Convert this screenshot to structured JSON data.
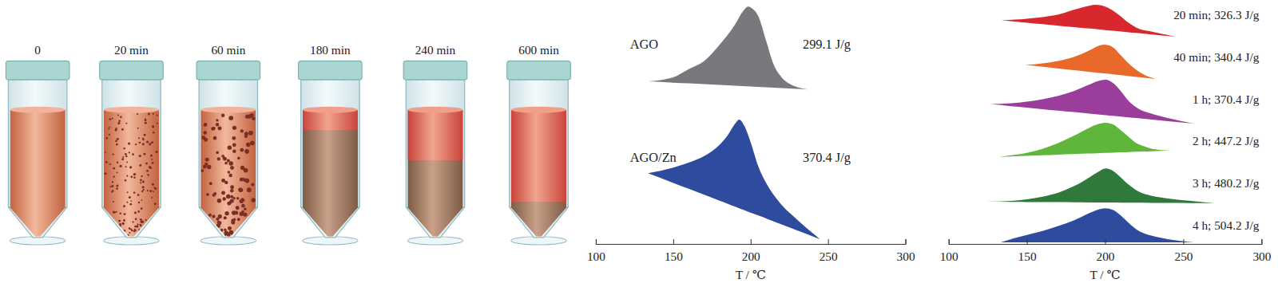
{
  "tubes": {
    "labels": [
      "0",
      "20 min",
      "60 min",
      "180 min",
      "240 min",
      "600 min"
    ]
  },
  "chart_data": [
    {
      "type": "area",
      "x_label": "T / ℃",
      "xlim": [
        100,
        300
      ],
      "xticks": [
        100,
        150,
        200,
        250,
        300
      ],
      "ylim": [
        0,
        300
      ],
      "tick_labels": "x",
      "series": [
        {
          "name": "AGO",
          "annotation": "299.1 J/g",
          "color": "#77797d",
          "x": [
            133.7,
            150,
            160,
            170,
            180,
            190,
            195,
            198.4,
            202,
            205,
            210,
            215,
            220,
            225,
            230,
            237.4
          ],
          "values": [
            200,
            205,
            215,
            225,
            245,
            270,
            286,
            292,
            288,
            280,
            250,
            220,
            205,
            197,
            193,
            190
          ],
          "baseline": [
            200,
            198.4,
            197.5,
            196.5,
            195.5,
            194.6,
            194.1,
            193.8,
            193.4,
            193.1,
            192.6,
            192.2,
            191.7,
            191.2,
            190.7,
            190
          ]
        },
        {
          "name": "AGO/Zn",
          "annotation": "370.4 J/g",
          "color": "#2f4b9d",
          "x": [
            133.7,
            150,
            160,
            170,
            180,
            185,
            190,
            192.6,
            196,
            200,
            205,
            210,
            215,
            220,
            230,
            244.7
          ],
          "values": [
            87,
            94,
            100,
            108,
            122,
            133,
            148,
            153,
            145,
            125,
            95,
            75,
            60,
            48,
            30,
            6
          ],
          "baseline": [
            87,
            75.1,
            67.8,
            60.5,
            53.2,
            49.6,
            45.9,
            44.0,
            41.5,
            38.6,
            35.0,
            31.4,
            27.7,
            24.0,
            16.7,
            6
          ]
        }
      ]
    },
    {
      "type": "area",
      "x_label": "T / ℃",
      "xlim": [
        100,
        300
      ],
      "xticks": [
        100,
        150,
        200,
        250,
        300
      ],
      "ylim": [
        0,
        300
      ],
      "tick_labels": "x",
      "series": [
        {
          "name": "20 min; 326.3 J/g",
          "color": "#d9272e",
          "x": [
            133.9,
            150,
            160,
            170,
            180,
            190,
            194,
            200,
            205,
            210,
            215,
            220,
            230,
            245.3
          ],
          "values": [
            275,
            277,
            279,
            282,
            288,
            293,
            294,
            292,
            287,
            280,
            272,
            266,
            261,
            255
          ],
          "baseline": [
            275,
            272.1,
            270.3,
            268.5,
            266.7,
            264.9,
            264.2,
            263.1,
            262.2,
            261.3,
            260.4,
            259.5,
            257.7,
            255
          ]
        },
        {
          "name": "40 min; 340.4 J/g",
          "color": "#e8692a",
          "x": [
            149,
            160,
            170,
            180,
            190,
            195,
            199.5,
            205,
            210,
            215,
            220,
            225,
            232.3
          ],
          "values": [
            220,
            222,
            225,
            230,
            238,
            243,
            245,
            242,
            232,
            222,
            214,
            208,
            203
          ],
          "baseline": [
            220,
            217.8,
            215.7,
            213.7,
            211.6,
            210.6,
            209.7,
            208.6,
            207.6,
            206.5,
            205.5,
            204.5,
            203
          ]
        },
        {
          "name": "1 h; 370.4 J/g",
          "color": "#9b3e9b",
          "x": [
            126.6,
            140,
            150,
            160,
            170,
            180,
            190,
            195,
            200.5,
            205,
            210,
            215,
            220,
            230,
            240,
            256.8
          ],
          "values": [
            172,
            173,
            175,
            178,
            182,
            188,
            196,
            200,
            202,
            198,
            188,
            176,
            168,
            160,
            155,
            148
          ],
          "baseline": [
            172,
            169.5,
            167.7,
            165.8,
            164.0,
            162.2,
            160.3,
            159.4,
            158.4,
            157.5,
            156.6,
            155.7,
            154.8,
            152.9,
            151.1,
            148
          ]
        },
        {
          "name": "2 h; 447.2 J/g",
          "color": "#5fb63b",
          "x": [
            132.3,
            140,
            150,
            160,
            170,
            180,
            190,
            195,
            200,
            205,
            210,
            215,
            220,
            225,
            230,
            241.7
          ],
          "values": [
            107,
            109,
            112,
            117,
            124,
            133,
            143,
            147,
            149,
            147,
            140,
            132,
            124,
            120,
            117,
            115
          ],
          "baseline": [
            107,
            107.6,
            108.3,
            109.0,
            109.8,
            110.5,
            111.2,
            111.6,
            112.0,
            112.3,
            112.7,
            113.0,
            113.4,
            113.8,
            114.1,
            115
          ]
        },
        {
          "name": "3 h; 480.2 J/g",
          "color": "#2f7a3b",
          "x": [
            122.9,
            140,
            150,
            160,
            170,
            180,
            190,
            195,
            200.5,
            205,
            210,
            215,
            220,
            230,
            240,
            255,
            269.8
          ],
          "values": [
            52,
            53,
            55,
            58,
            63,
            71,
            82,
            88,
            93,
            90,
            82,
            73,
            66,
            59,
            56,
            53,
            50
          ],
          "baseline": [
            52,
            51.8,
            51.6,
            51.5,
            51.4,
            51.2,
            51.1,
            51.0,
            50.9,
            50.9,
            50.8,
            50.7,
            50.7,
            50.5,
            50.4,
            50.2,
            50
          ]
        },
        {
          "name": "4 h; 504.2 J/g",
          "color": "#2f4b9d",
          "x": [
            133.3,
            140,
            150,
            160,
            170,
            180,
            190,
            195,
            200,
            205,
            210,
            215,
            220,
            230,
            240,
            256.8
          ],
          "values": [
            2,
            6,
            11,
            16,
            22,
            29,
            38,
            42,
            44,
            42,
            35,
            26,
            18,
            10,
            6,
            2
          ],
          "baseline": [
            2,
            2,
            2,
            2,
            2,
            2,
            2,
            2,
            2,
            2,
            2,
            2,
            2,
            2,
            2,
            2
          ]
        }
      ]
    }
  ]
}
